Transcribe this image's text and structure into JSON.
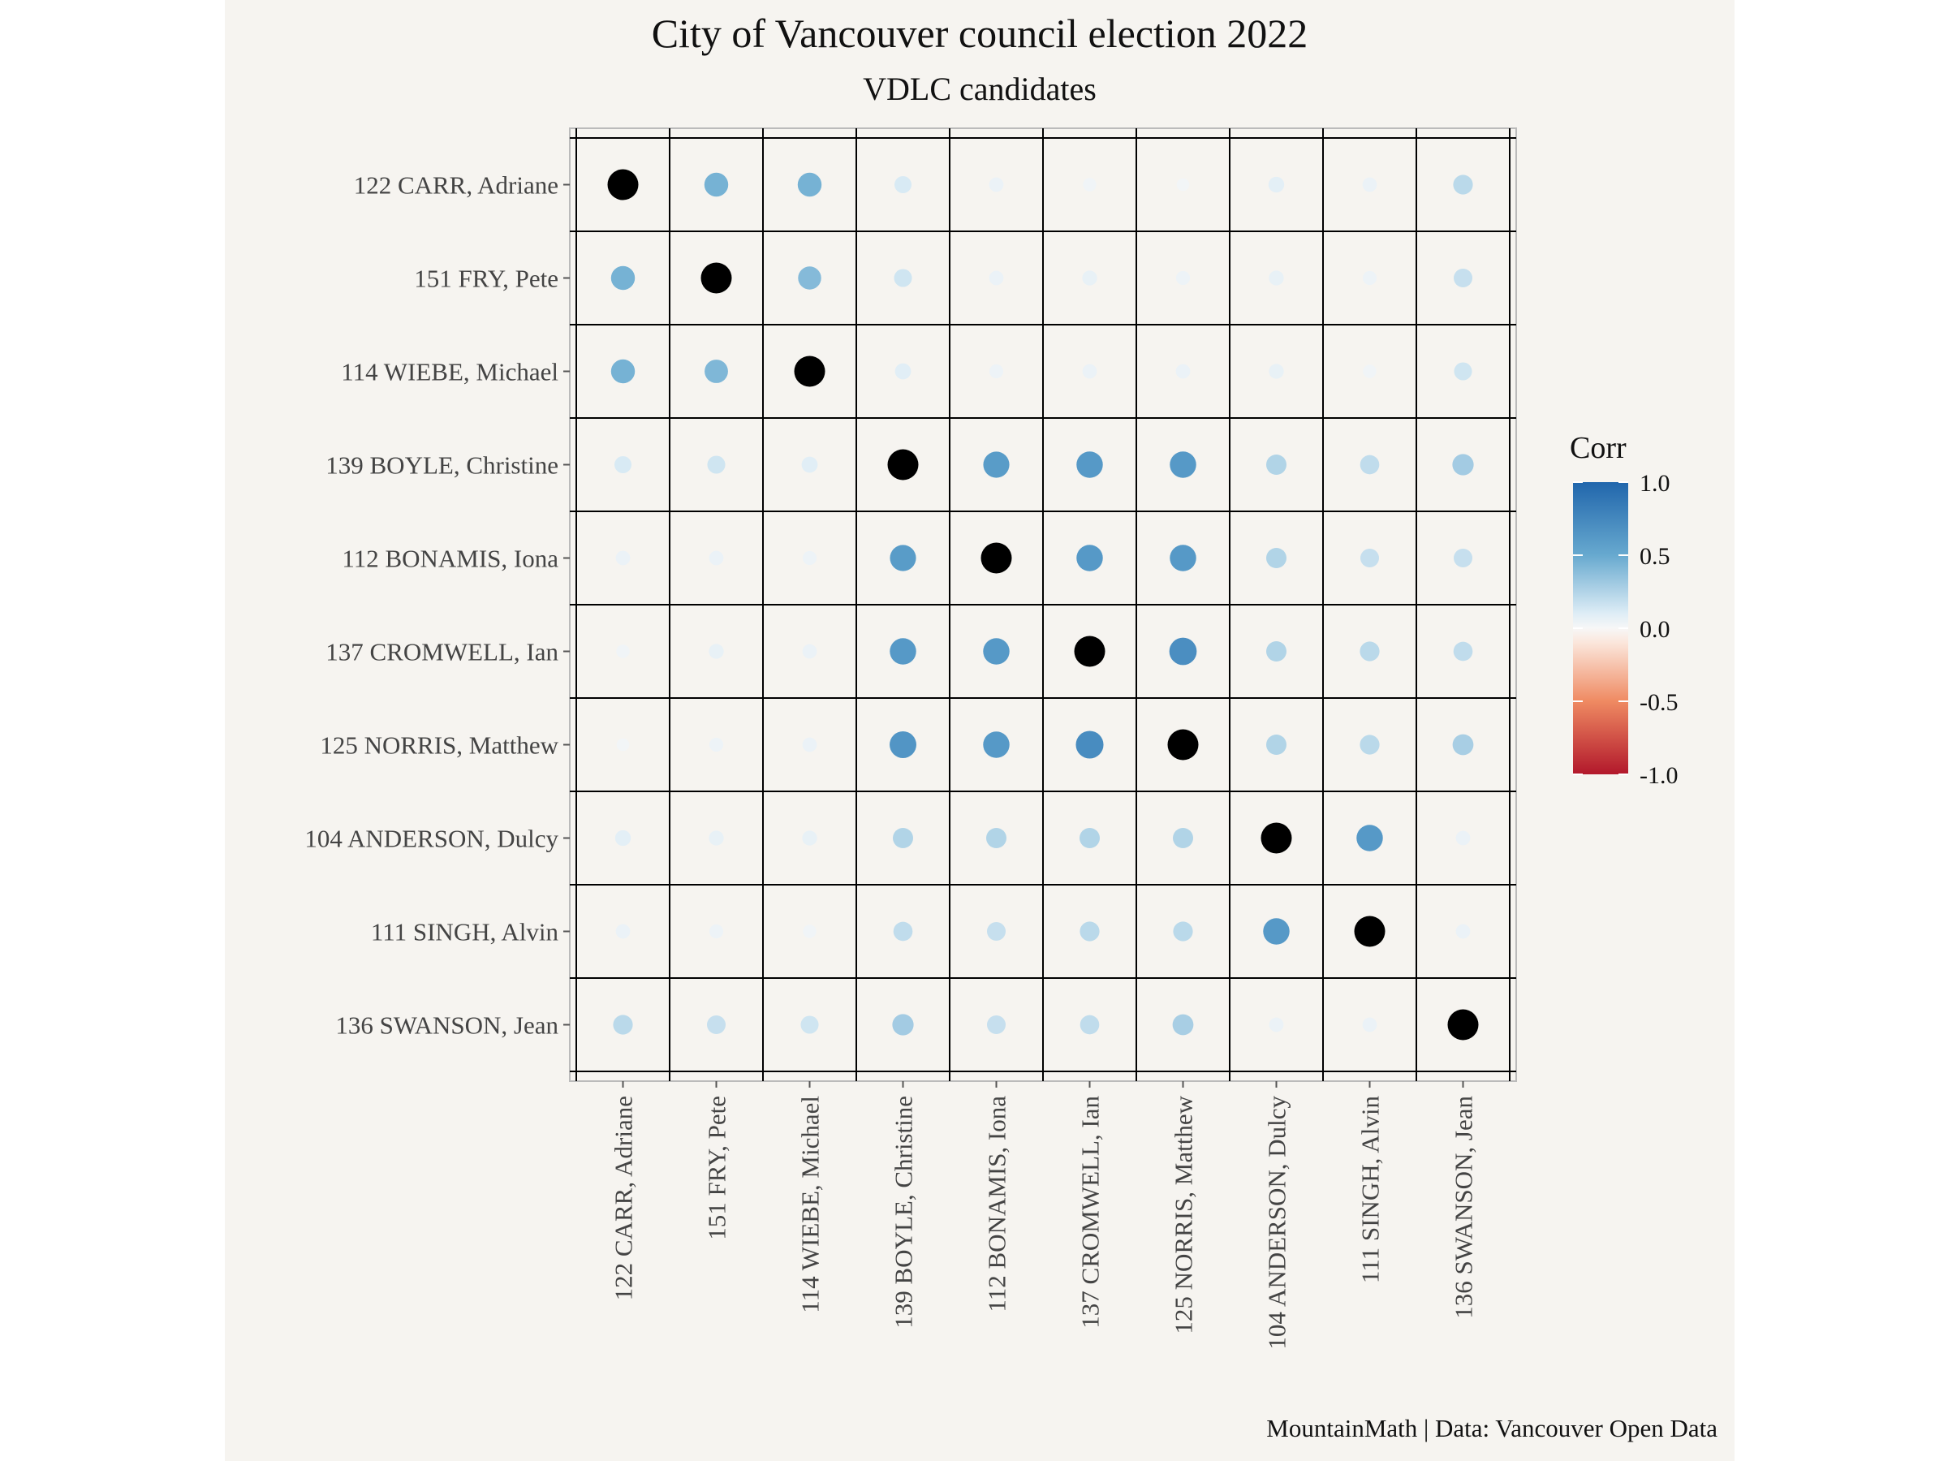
{
  "chart_data": {
    "type": "heatmap",
    "title": "City of Vancouver council election 2022",
    "subtitle": "VDLC candidates",
    "caption": "MountainMath | Data: Vancouver Open Data",
    "legend": {
      "title": "Corr",
      "placement": "right",
      "ticks": [
        "1.0",
        "0.5",
        "0.0",
        "-0.5",
        "-1.0"
      ],
      "range": [
        -1,
        1
      ]
    },
    "labels": [
      "122 CARR, Adriane",
      "151 FRY, Pete",
      "114 WIEBE, Michael",
      "139 BOYLE, Christine",
      "112 BONAMIS, Iona",
      "137 CROMWELL, Ian",
      "125 NORRIS, Matthew",
      "104 ANDERSON, Dulcy",
      "111 SINGH, Alvin",
      "136 SWANSON, Jean"
    ],
    "matrix": [
      [
        1.0,
        0.45,
        0.45,
        0.12,
        0.05,
        0.03,
        0.02,
        0.08,
        0.05,
        0.22
      ],
      [
        0.45,
        1.0,
        0.4,
        0.15,
        0.05,
        0.06,
        0.04,
        0.06,
        0.04,
        0.18
      ],
      [
        0.45,
        0.42,
        1.0,
        0.09,
        0.04,
        0.05,
        0.05,
        0.06,
        0.03,
        0.15
      ],
      [
        0.12,
        0.15,
        0.09,
        1.0,
        0.6,
        0.62,
        0.62,
        0.25,
        0.2,
        0.3
      ],
      [
        0.05,
        0.05,
        0.04,
        0.6,
        1.0,
        0.62,
        0.62,
        0.25,
        0.18,
        0.18
      ],
      [
        0.03,
        0.06,
        0.05,
        0.62,
        0.62,
        1.0,
        0.7,
        0.25,
        0.22,
        0.2
      ],
      [
        0.02,
        0.04,
        0.05,
        0.65,
        0.62,
        0.72,
        1.0,
        0.25,
        0.22,
        0.28
      ],
      [
        0.08,
        0.06,
        0.06,
        0.25,
        0.25,
        0.25,
        0.25,
        1.0,
        0.62,
        0.05
      ],
      [
        0.05,
        0.04,
        0.03,
        0.2,
        0.18,
        0.22,
        0.22,
        0.62,
        1.0,
        0.05
      ],
      [
        0.22,
        0.18,
        0.15,
        0.3,
        0.18,
        0.2,
        0.28,
        0.05,
        0.05,
        1.0
      ]
    ],
    "diagonal_color": "#000000"
  }
}
